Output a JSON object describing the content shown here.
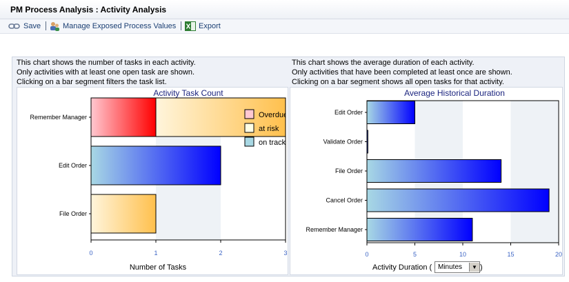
{
  "window": {
    "title": "PM Process Analysis : Activity Analysis"
  },
  "toolbar": {
    "save_label": "Save",
    "manage_label": "Manage Exposed Process Values",
    "export_label": "Export"
  },
  "left_panel": {
    "desc": [
      "This chart shows the number of tasks in each activity.",
      "Only activities with at least one open task are shown.",
      "Clicking on a bar segment filters the task list."
    ]
  },
  "right_panel": {
    "desc": [
      "This chart shows the average duration of each activity.",
      "Only activities that have been completed at least once are shown.",
      "Clicking on a bar segment shows all open tasks for that activity."
    ],
    "xlabel_prefix": "Activity Duration (",
    "xlabel_suffix": ")",
    "unit_select": "Minutes"
  },
  "colors": {
    "overdue": "#ff0000",
    "at_risk": "#ffc04d",
    "on_track": "#0000ff"
  },
  "chart_data": [
    {
      "type": "bar",
      "orientation": "horizontal",
      "stacked": true,
      "title": "Activity Task Count",
      "categories": [
        "Remember Manager",
        "Edit Order",
        "File Order"
      ],
      "series": [
        {
          "name": "Overdue",
          "values": [
            1,
            0,
            0
          ]
        },
        {
          "name": "at risk",
          "values": [
            2,
            0,
            1
          ]
        },
        {
          "name": "on track",
          "values": [
            0,
            2,
            0
          ]
        }
      ],
      "xlabel": "Number of Tasks",
      "ylabel": "",
      "xlim": [
        0,
        3
      ],
      "xticks": [
        "0",
        "1",
        "2",
        "3"
      ],
      "legend": "top-right"
    },
    {
      "type": "bar",
      "orientation": "horizontal",
      "title": "Average Historical Duration",
      "categories": [
        "Edit Order",
        "Validate Order",
        "File Order",
        "Cancel Order",
        "Remember Manager"
      ],
      "values": [
        5,
        0.1,
        14,
        19,
        11
      ],
      "xlabel": "Activity Duration ( Minutes )",
      "ylabel": "",
      "xlim": [
        0,
        20
      ],
      "xticks": [
        "0",
        "5",
        "10",
        "15",
        "20"
      ]
    }
  ]
}
